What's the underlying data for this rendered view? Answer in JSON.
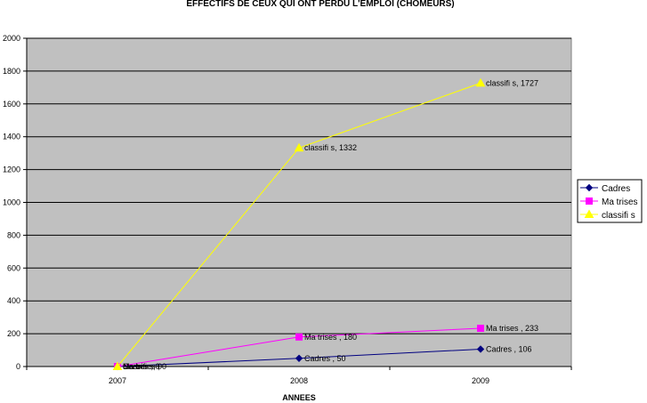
{
  "chart_data": {
    "type": "line",
    "title": "EFFECTIFS DE CEUX QUI ONT PERDU L'EMPLOI (CHOMEURS)",
    "xlabel": "ANNEES",
    "ylabel": "",
    "categories": [
      "2007",
      "2008",
      "2009"
    ],
    "ylim": [
      0,
      2000
    ],
    "yticks": [
      0,
      200,
      400,
      600,
      800,
      1000,
      1200,
      1400,
      1600,
      1800,
      2000
    ],
    "ytick_labels": [
      "0",
      "200",
      "400",
      "600",
      "800",
      "1000",
      "1200",
      "1400",
      "1600",
      "1800",
      "2000"
    ],
    "grid": true,
    "legend_position": "right",
    "plot_background": "#c0c0c0",
    "series": [
      {
        "name": "Cadres",
        "values": [
          0,
          50,
          106
        ],
        "color": "#000080",
        "marker": "diamond",
        "data_labels": [
          "Cadres , 0",
          "Cadres , 50",
          "Cadres , 106"
        ]
      },
      {
        "name": "Ma trises",
        "values": [
          0,
          180,
          233
        ],
        "color": "#ff00ff",
        "marker": "square",
        "data_labels": [
          "Ma trises , 0",
          "Ma trises , 180",
          "Ma trises , 233"
        ]
      },
      {
        "name": "classifi s",
        "values": [
          0,
          1332,
          1727
        ],
        "color": "#ffff00",
        "marker": "triangle",
        "data_labels": [
          "classifi s, 0",
          "classifi s, 1332",
          "classifi s, 1727"
        ]
      }
    ]
  }
}
